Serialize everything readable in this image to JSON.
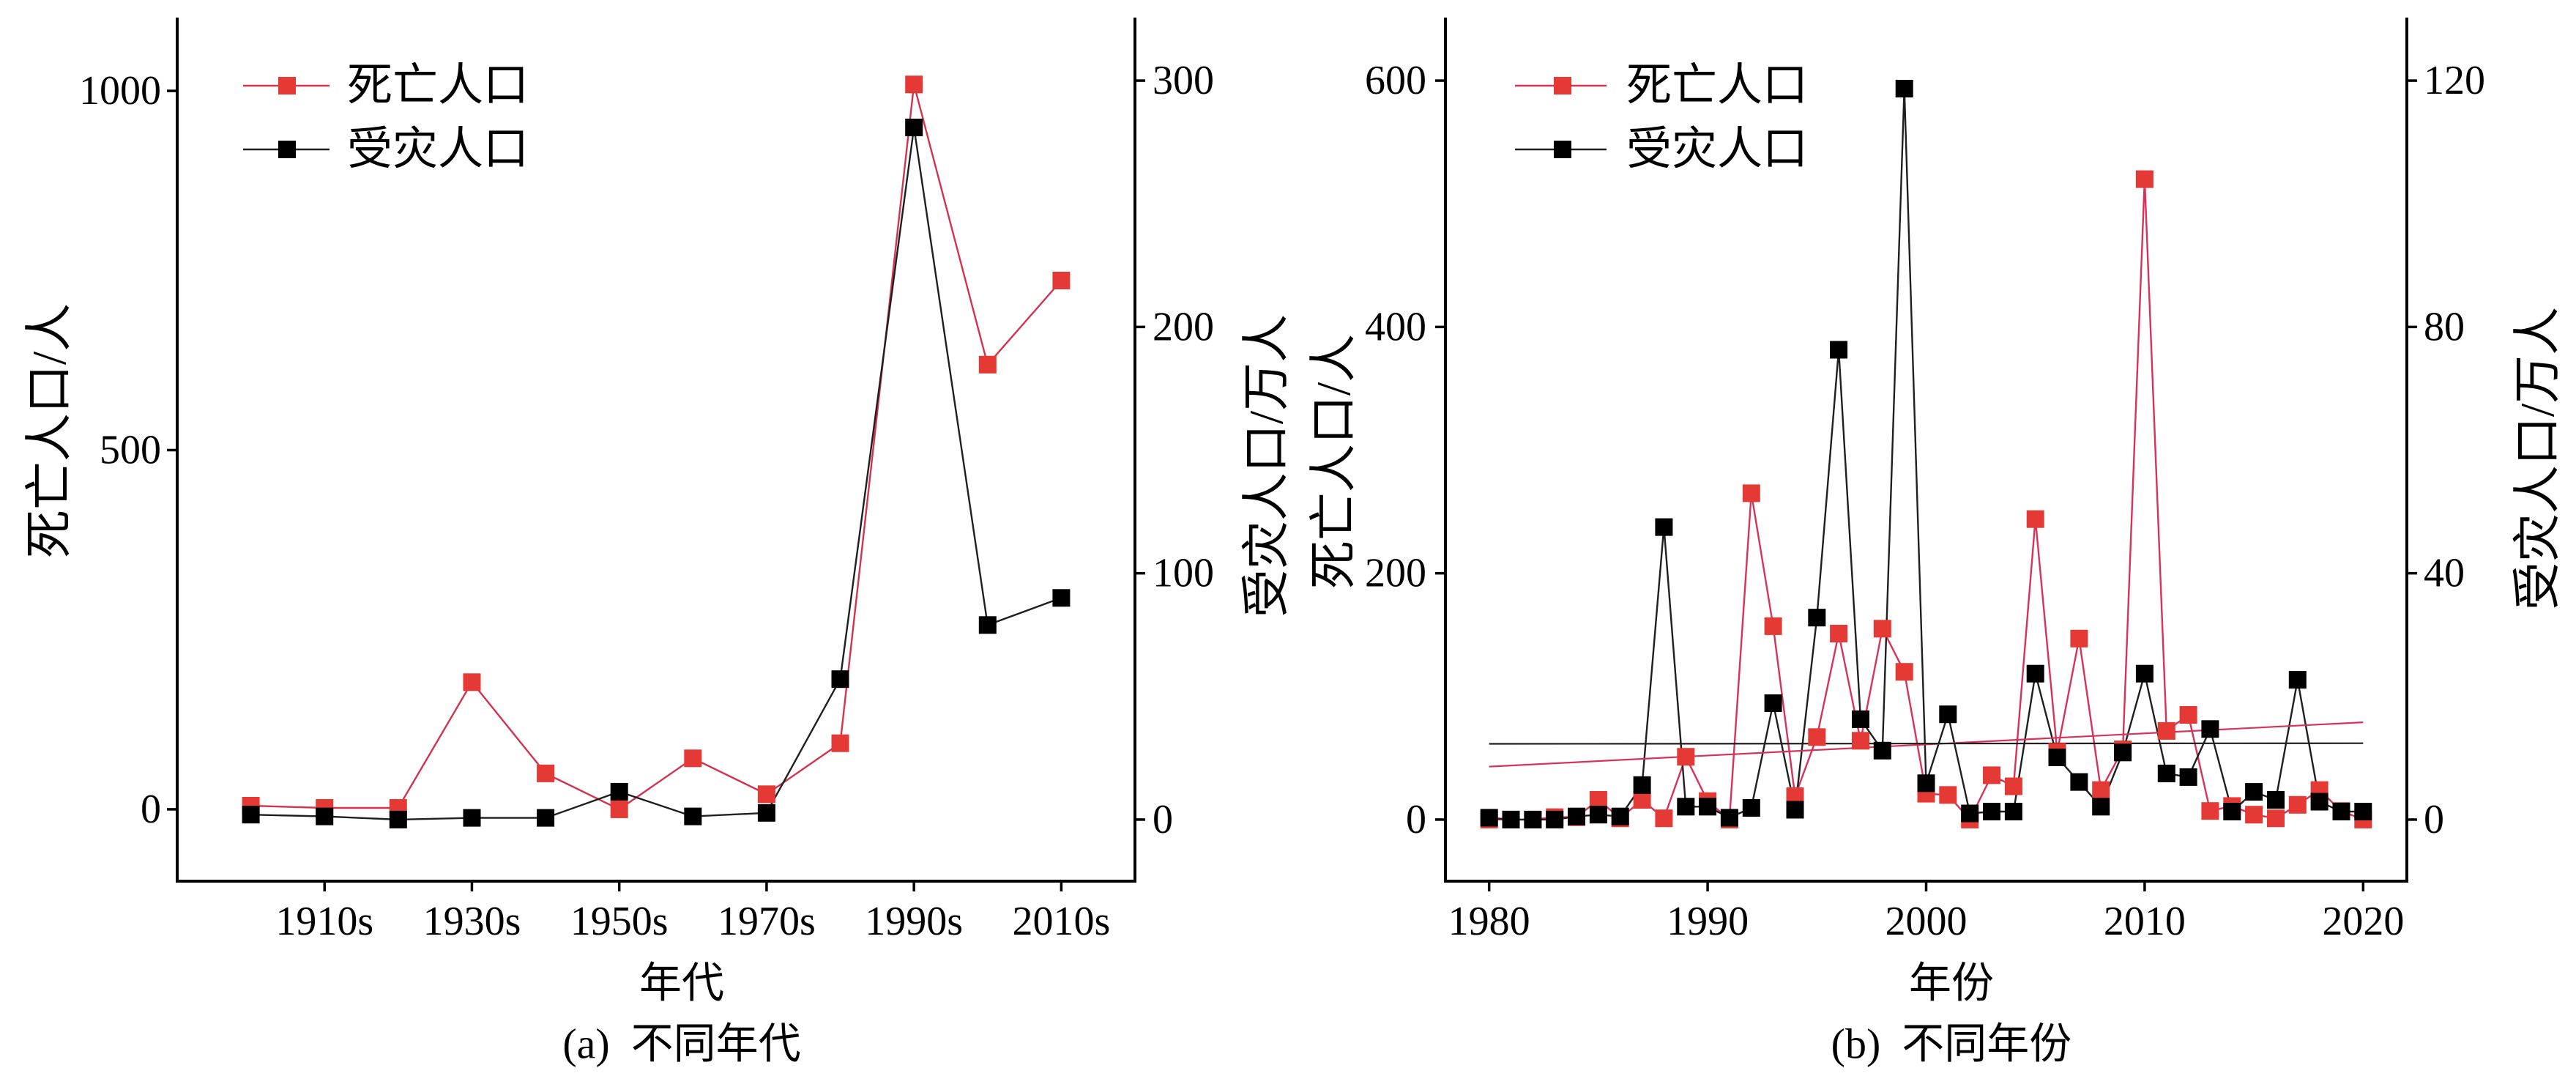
{
  "chart_data": [
    {
      "type": "line",
      "caption": "(a)  不同年代",
      "xlabel": "年代",
      "ylabel": "死亡人口/人",
      "y2label": "受灾人口/万人",
      "x": [
        1900,
        1910,
        1920,
        1930,
        1940,
        1950,
        1960,
        1970,
        1980,
        1990,
        2000,
        2010
      ],
      "x_ticks": [
        1910,
        1930,
        1950,
        1970,
        1990,
        2010
      ],
      "x_tick_labels": [
        "1910s",
        "1930s",
        "1950s",
        "1970s",
        "1990s",
        "2010s"
      ],
      "xlim": [
        1890,
        2020
      ],
      "ylim": [
        -100,
        1100
      ],
      "y_ticks": [
        0,
        500,
        1000
      ],
      "y2lim": [
        -25,
        325
      ],
      "y2_ticks": [
        0,
        100,
        200,
        300
      ],
      "grid": false,
      "legend": "top-left",
      "series": [
        {
          "name": "死亡人口",
          "axis": "left",
          "color": "#e53935",
          "line_color": "#d2334d",
          "values": [
            5,
            2,
            2,
            177,
            50,
            0,
            71,
            21,
            92,
            1009,
            619,
            736
          ]
        },
        {
          "name": "受灾人口",
          "axis": "right",
          "color": "#000000",
          "line_color": "#1f1f1f",
          "values": [
            2,
            1.3,
            0,
            0.7,
            0.7,
            11.3,
            1.3,
            2.7,
            57,
            281,
            79,
            90
          ]
        }
      ]
    },
    {
      "type": "line",
      "caption": "(b)  不同年份",
      "xlabel": "年份",
      "ylabel": "死亡人口/人",
      "y2label": "受灾人口/万人",
      "x": [
        1980,
        1981,
        1982,
        1983,
        1984,
        1985,
        1986,
        1987,
        1988,
        1989,
        1990,
        1991,
        1992,
        1993,
        1994,
        1995,
        1996,
        1997,
        1998,
        1999,
        2000,
        2001,
        2002,
        2003,
        2004,
        2005,
        2006,
        2007,
        2008,
        2009,
        2010,
        2011,
        2012,
        2013,
        2014,
        2015,
        2016,
        2017,
        2018,
        2019,
        2020
      ],
      "x_ticks": [
        1980,
        1990,
        2000,
        2010,
        2020
      ],
      "xlim": [
        1978,
        2022
      ],
      "ylim": [
        -50,
        650
      ],
      "y_ticks": [
        0,
        200,
        400,
        600
      ],
      "y2lim": [
        -10,
        130
      ],
      "y2_ticks": [
        0,
        40,
        80,
        120
      ],
      "grid": false,
      "legend": "top-left",
      "series": [
        {
          "name": "死亡人口",
          "axis": "left",
          "color": "#e53935",
          "line_color": "#d6325a",
          "values": [
            0,
            0,
            0,
            2,
            2,
            16,
            1,
            16,
            1,
            51,
            15,
            0,
            265,
            157,
            19,
            67,
            151,
            64,
            155,
            120,
            21,
            20,
            0,
            36,
            27,
            244,
            55,
            147,
            24,
            57,
            520,
            72,
            85,
            7,
            11,
            4,
            1,
            12,
            24,
            7,
            0
          ],
          "trend": {
            "x": [
              1980,
              2020
            ],
            "y": [
              43,
              79
            ]
          }
        },
        {
          "name": "受灾人口",
          "axis": "right",
          "color": "#000000",
          "line_color": "#1f1f1f",
          "values": [
            0.3,
            0,
            0,
            0,
            0.5,
            0.8,
            0.5,
            5.6,
            47.5,
            2.1,
            2.1,
            0.3,
            1.9,
            18.9,
            1.6,
            32.8,
            76.3,
            16.3,
            11.2,
            118.7,
            5.9,
            17.1,
            1,
            1.3,
            1.3,
            23.7,
            10.1,
            6.1,
            2.1,
            10.9,
            23.7,
            7.5,
            6.9,
            14.7,
            1.3,
            4.5,
            3.2,
            22.7,
            2.9,
            1.3,
            1.3
          ],
          "trend": {
            "x": [
              1980,
              2020
            ],
            "y": [
              12.3,
              12.4
            ]
          }
        }
      ]
    }
  ]
}
